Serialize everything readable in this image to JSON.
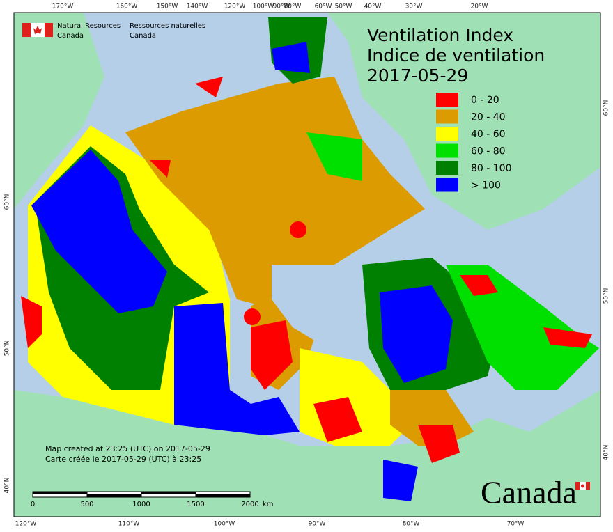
{
  "header": {
    "org_en": [
      "Natural Resources",
      "Canada"
    ],
    "org_fr": [
      "Ressources naturelles",
      "Canada"
    ]
  },
  "title": [
    "Ventilation Index",
    "Indice de ventilation",
    "2017-05-29"
  ],
  "legend": [
    {
      "label": "0 - 20",
      "color": "#ff0000"
    },
    {
      "label": "20 - 40",
      "color": "#dc9b00"
    },
    {
      "label": "40 - 60",
      "color": "#ffff00"
    },
    {
      "label": "60 - 80",
      "color": "#00e000"
    },
    {
      "label": "80 - 100",
      "color": "#008000"
    },
    {
      "label": "> 100",
      "color": "#0000ff"
    }
  ],
  "top_longitudes": [
    "170°W",
    "160°W",
    "150°W",
    "140°W",
    "120°W",
    "100°W",
    "90°W",
    "80°W",
    "60°W",
    "50°W",
    "40°W",
    "30°W",
    "20°W"
  ],
  "bottom_longitudes": [
    "120°W",
    "110°W",
    "100°W",
    "90°W",
    "80°W",
    "70°W"
  ],
  "left_latitudes": [
    "60°N",
    "50°N",
    "40°N"
  ],
  "right_latitudes": [
    "60°N",
    "50°N",
    "40°N"
  ],
  "notes": [
    "Map created at 23:25 (UTC) on 2017-05-29",
    "Carte créée le 2017-05-29 (UTC) à 23:25"
  ],
  "scale_bar": {
    "ticks": [
      0,
      500,
      1000,
      1500,
      2000
    ],
    "unit": "km"
  },
  "wordmark": "Canada"
}
